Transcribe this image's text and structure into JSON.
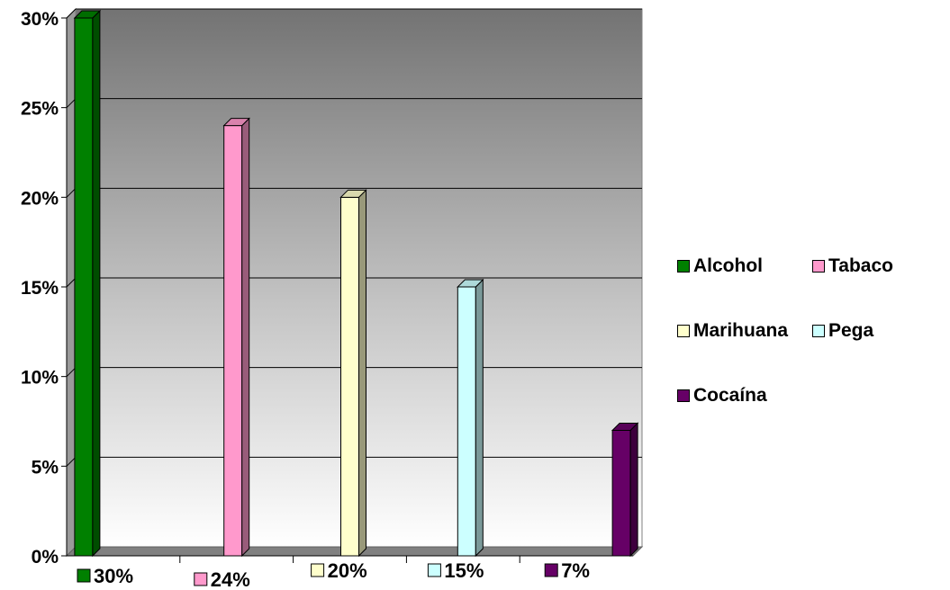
{
  "chart_data": {
    "type": "bar",
    "categories": [
      "Alcohol",
      "Tabaco",
      "Marihuana",
      "Pega",
      "Cocaína"
    ],
    "values": [
      30,
      24,
      20,
      15,
      7
    ],
    "value_labels": [
      "30%",
      "24%",
      "20%",
      "15%",
      "7%"
    ],
    "y_tick_labels": [
      "0%",
      "5%",
      "10%",
      "15%",
      "20%",
      "25%",
      "30%"
    ],
    "ylim": [
      0,
      30
    ],
    "y_unit": "%",
    "grid": true,
    "style": "3d-column",
    "legend_placement": "right",
    "colors": [
      "#008000",
      "#ff99cc",
      "#ffffcc",
      "#ccffff",
      "#660066"
    ],
    "title": "",
    "xlabel": "",
    "ylabel": ""
  }
}
